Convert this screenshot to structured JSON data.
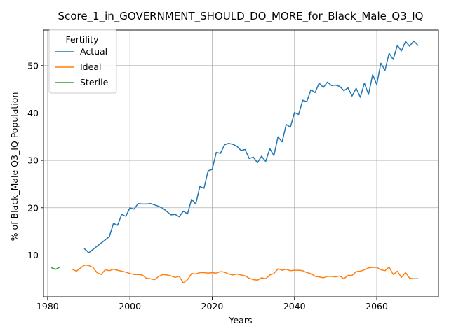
{
  "chart_data": {
    "type": "line",
    "title": "Score_1_in_GOVERNMENT_SHOULD_DO_MORE_for_Black_Male_Q3_IQ",
    "xlabel": "Years",
    "ylabel": "% of Black_Male Q3_IQ Population",
    "xlim": [
      1979,
      2075
    ],
    "ylim": [
      1.2,
      57.5
    ],
    "xticks": [
      1980,
      2000,
      2020,
      2040,
      2060
    ],
    "yticks": [
      10,
      20,
      30,
      40,
      50
    ],
    "grid": true,
    "legend": {
      "title": "Fertility",
      "position": "top-left"
    },
    "series": [
      {
        "name": "Actual",
        "color": "#1f77b4",
        "x": [
          1989,
          1990,
          1995,
          1996,
          1997,
          1998,
          1999,
          2000,
          2001,
          2002,
          2003,
          2004,
          2005,
          2006,
          2007,
          2008,
          2009,
          2010,
          2011,
          2012,
          2013,
          2014,
          2015,
          2016,
          2017,
          2018,
          2019,
          2020,
          2021,
          2022,
          2023,
          2024,
          2025,
          2026,
          2027,
          2028,
          2029,
          2030,
          2031,
          2032,
          2033,
          2034,
          2035,
          2036,
          2037,
          2038,
          2039,
          2040,
          2041,
          2042,
          2043,
          2044,
          2045,
          2046,
          2047,
          2048,
          2049,
          2050,
          2051,
          2052,
          2053,
          2054,
          2055,
          2056,
          2057,
          2058,
          2059,
          2060,
          2061,
          2062,
          2063,
          2064,
          2065,
          2066,
          2067,
          2068,
          2069,
          2070
        ],
        "y": [
          11.3,
          10.5,
          13.9,
          16.7,
          16.3,
          18.6,
          18.2,
          20.0,
          19.7,
          20.9,
          20.8,
          20.8,
          20.9,
          20.6,
          20.3,
          19.9,
          19.2,
          18.5,
          18.6,
          18.1,
          19.3,
          18.7,
          21.8,
          20.8,
          24.5,
          24.1,
          27.8,
          28.1,
          31.7,
          31.5,
          33.3,
          33.6,
          33.4,
          33.0,
          32.1,
          32.3,
          30.4,
          30.7,
          29.5,
          30.9,
          29.8,
          32.5,
          31.0,
          35.0,
          33.9,
          37.6,
          37.0,
          40.1,
          39.7,
          42.7,
          42.4,
          44.9,
          44.3,
          46.3,
          45.4,
          46.5,
          45.8,
          45.9,
          45.6,
          44.7,
          45.3,
          43.6,
          45.2,
          43.3,
          46.3,
          43.9,
          48.1,
          46.0,
          50.5,
          49.0,
          52.6,
          51.3,
          54.3,
          53.1,
          55.1,
          54.1,
          55.2,
          54.3
        ]
      },
      {
        "name": "Ideal",
        "color": "#ff7f0e",
        "x": [
          1986,
          1987,
          1988,
          1989,
          1990,
          1991,
          1992,
          1993,
          1994,
          1995,
          1996,
          1997,
          1998,
          1999,
          2000,
          2001,
          2002,
          2003,
          2004,
          2005,
          2006,
          2007,
          2008,
          2009,
          2010,
          2011,
          2012,
          2013,
          2014,
          2015,
          2016,
          2017,
          2018,
          2019,
          2020,
          2021,
          2022,
          2023,
          2024,
          2025,
          2026,
          2027,
          2028,
          2029,
          2030,
          2031,
          2032,
          2033,
          2034,
          2035,
          2036,
          2037,
          2038,
          2039,
          2040,
          2041,
          2042,
          2043,
          2044,
          2045,
          2046,
          2047,
          2048,
          2049,
          2050,
          2051,
          2052,
          2053,
          2054,
          2055,
          2056,
          2057,
          2058,
          2059,
          2060,
          2061,
          2062,
          2063,
          2064,
          2065,
          2066,
          2067,
          2068,
          2069,
          2070
        ],
        "y": [
          7.0,
          6.6,
          7.3,
          7.9,
          7.8,
          7.4,
          6.3,
          5.9,
          6.9,
          6.7,
          7.0,
          6.8,
          6.6,
          6.4,
          6.1,
          5.9,
          5.9,
          5.8,
          5.1,
          5.0,
          4.8,
          5.5,
          5.9,
          5.8,
          5.6,
          5.3,
          5.5,
          4.1,
          4.8,
          6.1,
          6.0,
          6.3,
          6.3,
          6.2,
          6.3,
          6.2,
          6.5,
          6.4,
          6.0,
          5.8,
          6.0,
          5.8,
          5.6,
          5.1,
          4.8,
          4.7,
          5.2,
          5.0,
          5.8,
          6.1,
          7.1,
          6.8,
          7.0,
          6.7,
          6.8,
          6.8,
          6.7,
          6.3,
          6.1,
          5.5,
          5.4,
          5.2,
          5.5,
          5.5,
          5.4,
          5.6,
          5.0,
          5.7,
          5.7,
          6.5,
          6.6,
          6.9,
          7.3,
          7.4,
          7.4,
          6.9,
          6.7,
          7.5,
          5.9,
          6.6,
          5.3,
          6.3,
          5.1,
          5.0,
          5.0
        ]
      },
      {
        "name": "Sterile",
        "color": "#2ca02c",
        "x": [
          1981,
          1982,
          1983
        ],
        "y": [
          7.3,
          7.0,
          7.5
        ]
      }
    ]
  }
}
